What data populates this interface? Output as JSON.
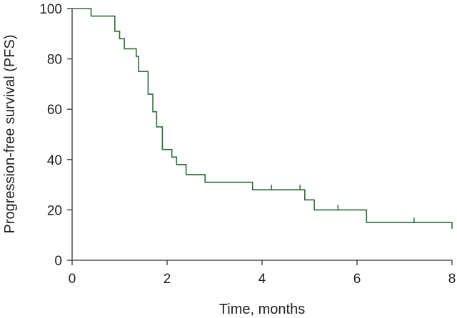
{
  "chart_data": {
    "type": "line",
    "xlabel": "Time, months",
    "ylabel": "Progression-free survival (PFS)",
    "xlim": [
      0,
      8
    ],
    "ylim": [
      0,
      100
    ],
    "xticks": [
      0,
      2,
      4,
      6,
      8
    ],
    "yticks": [
      0,
      20,
      40,
      60,
      80,
      100
    ],
    "grid": false,
    "legend": "none",
    "line_color": "#2e6b3a",
    "series": [
      {
        "step": "post",
        "x": [
          0,
          0.4,
          0.9,
          1.0,
          1.1,
          1.35,
          1.4,
          1.6,
          1.7,
          1.78,
          1.9,
          2.1,
          2.2,
          2.4,
          2.8,
          3.8,
          4.9,
          5.1,
          6.2,
          8.0
        ],
        "y": [
          100,
          97,
          91,
          88,
          84,
          81,
          75,
          66,
          59,
          53,
          44,
          41,
          38,
          34,
          31,
          28,
          24,
          20,
          15,
          12.5
        ]
      }
    ],
    "censored": [
      {
        "x": 4.2,
        "y": 28
      },
      {
        "x": 4.8,
        "y": 28
      },
      {
        "x": 5.6,
        "y": 20
      },
      {
        "x": 7.2,
        "y": 15
      }
    ]
  }
}
